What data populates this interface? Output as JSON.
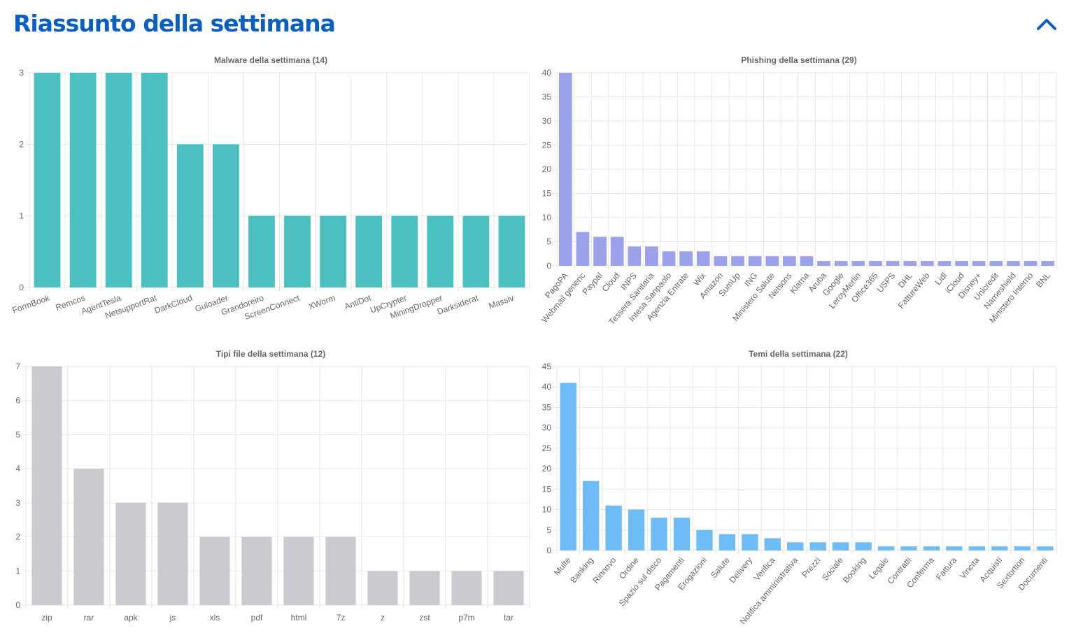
{
  "page": {
    "title": "Riassunto della settimana",
    "collapse_icon": "chevron-up-icon",
    "accent_color": "#0a5fc2"
  },
  "chart_data": [
    {
      "id": "malware",
      "type": "bar",
      "title": "Malware della settimana (14)",
      "categories": [
        "FormBook",
        "Remcos",
        "AgentTesla",
        "NetsupportRat",
        "DarkCloud",
        "Guloader",
        "Grandoreiro",
        "ScreenConnect",
        "XWorm",
        "AntiDot",
        "UpCrypter",
        "MiningDropper",
        "Darksiderat",
        "Massiv"
      ],
      "values": [
        3,
        3,
        3,
        3,
        2,
        2,
        1,
        1,
        1,
        1,
        1,
        1,
        1,
        1
      ],
      "color": "#4bc0c0",
      "ylim": [
        0,
        3
      ],
      "yticks": [
        0,
        1,
        2,
        3
      ],
      "xlabel": "",
      "ylabel": "",
      "grid": true
    },
    {
      "id": "phishing",
      "type": "bar",
      "title": "Phishing della settimana (29)",
      "categories": [
        "PagoPA",
        "Webmail generic",
        "Paypal",
        "Cloud",
        "INPS",
        "Tessera Sanitaria",
        "Intesa Sanpaolo",
        "Agenzia Entrate",
        "Wix",
        "Amazon",
        "SumUp",
        "ING",
        "Ministero Salute",
        "Netsons",
        "Klarna",
        "Aruba",
        "Google",
        "LeroyMerlin",
        "Office365",
        "USPS",
        "DHL",
        "FattureWeb",
        "Lidl",
        "iCloud",
        "Disney+",
        "Unicredit",
        "Nameshield",
        "Ministero Interno",
        "BNL"
      ],
      "values": [
        40,
        7,
        6,
        6,
        4,
        4,
        3,
        3,
        3,
        2,
        2,
        2,
        2,
        2,
        2,
        1,
        1,
        1,
        1,
        1,
        1,
        1,
        1,
        1,
        1,
        1,
        1,
        1,
        1
      ],
      "color": "#9ba1ea",
      "ylim": [
        0,
        40
      ],
      "yticks": [
        0,
        5,
        10,
        15,
        20,
        25,
        30,
        35,
        40
      ],
      "xlabel": "",
      "ylabel": "",
      "grid": true
    },
    {
      "id": "filetypes",
      "type": "bar",
      "title": "Tipi file della settimana (12)",
      "categories": [
        "zip",
        "rar",
        "apk",
        "js",
        "xls",
        "pdf",
        "html",
        "7z",
        "z",
        "zst",
        "p7m",
        "tar"
      ],
      "values": [
        7,
        4,
        3,
        3,
        2,
        2,
        2,
        2,
        1,
        1,
        1,
        1
      ],
      "color": "#cbcbcf",
      "ylim": [
        0,
        7
      ],
      "yticks": [
        0,
        1,
        2,
        3,
        4,
        5,
        6,
        7
      ],
      "xlabel": "",
      "ylabel": "",
      "grid": true
    },
    {
      "id": "themes",
      "type": "bar",
      "title": "Temi della settimana (22)",
      "categories": [
        "Multe",
        "Banking",
        "Rinnovo",
        "Ordine",
        "Spazio sul disco",
        "Pagamenti",
        "Erogazioni",
        "Salute",
        "Delivery",
        "Verifica",
        "Notifica amministrativa",
        "Prezzi",
        "Sociale",
        "Booking",
        "Legale",
        "Contratti",
        "Conferma",
        "Fattura",
        "Vincita",
        "Acquisti",
        "Sextortion",
        "Documenti"
      ],
      "values": [
        41,
        17,
        11,
        10,
        8,
        8,
        5,
        4,
        4,
        3,
        2,
        2,
        2,
        2,
        1,
        1,
        1,
        1,
        1,
        1,
        1,
        1
      ],
      "color": "#6ebcf7",
      "ylim": [
        0,
        45
      ],
      "yticks": [
        0,
        5,
        10,
        15,
        20,
        25,
        30,
        35,
        40,
        45
      ],
      "xlabel": "",
      "ylabel": "",
      "grid": true
    }
  ]
}
